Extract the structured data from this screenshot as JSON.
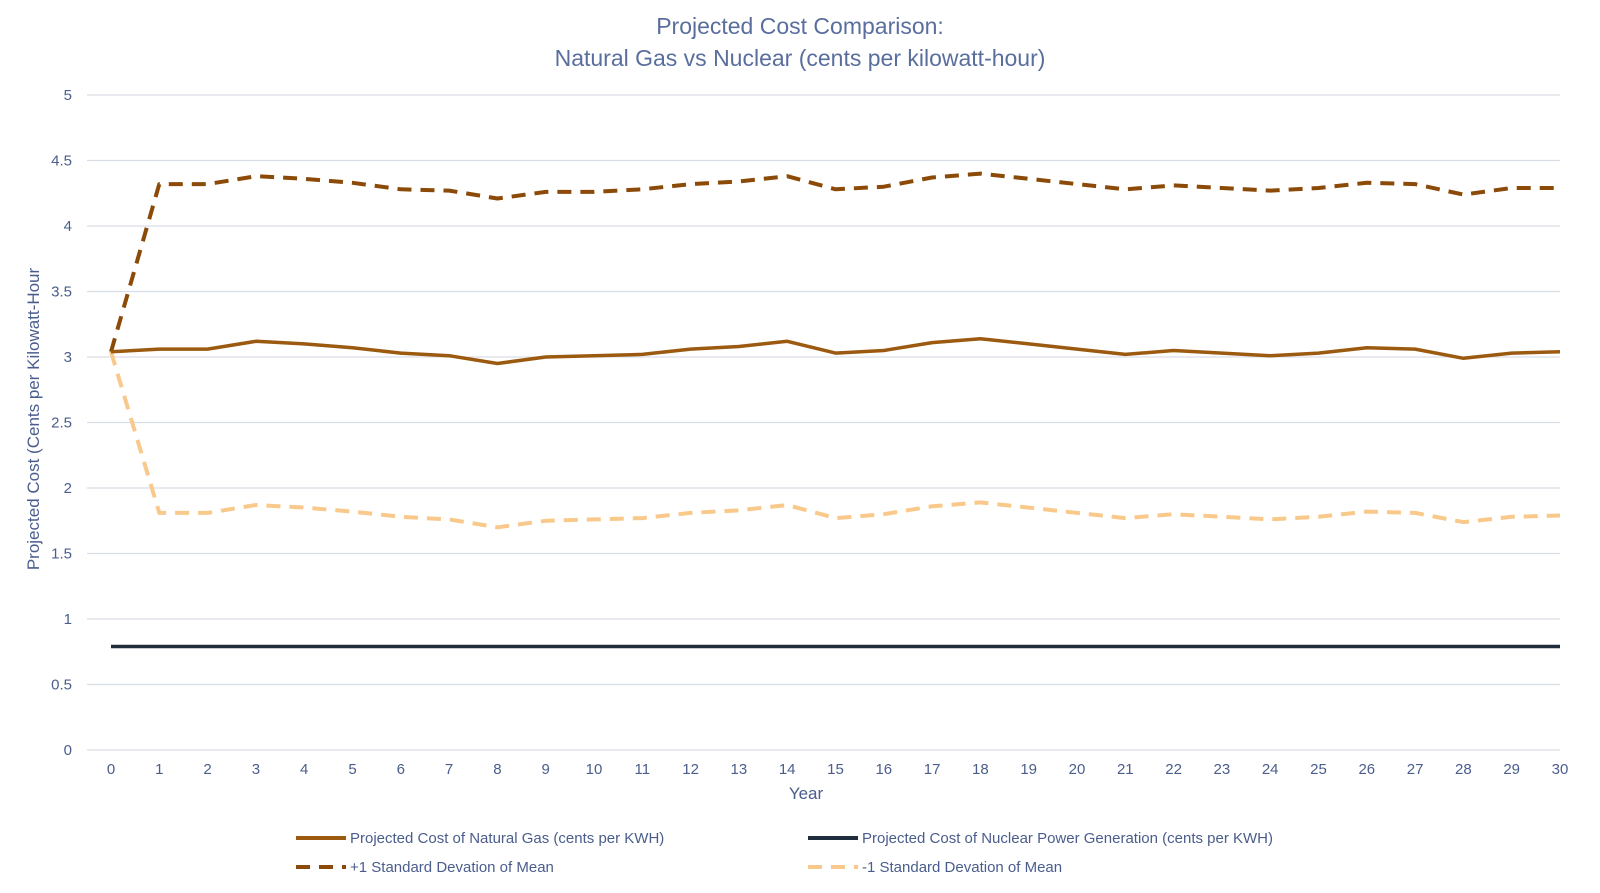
{
  "chart_data": {
    "type": "line",
    "title_line1": "Projected Cost Comparison:",
    "title_line2": "Natural Gas vs Nuclear (cents per kilowatt-hour)",
    "xlabel": "Year",
    "ylabel": "Projected Cost (Cents per Kilowatt-Hour",
    "ylim": [
      0,
      5
    ],
    "yticks": [
      "0",
      "0.5",
      "1",
      "1.5",
      "2",
      "2.5",
      "3",
      "3.5",
      "4",
      "4.5",
      "5"
    ],
    "x": [
      "0",
      "1",
      "2",
      "3",
      "4",
      "5",
      "6",
      "7",
      "8",
      "9",
      "10",
      "11",
      "12",
      "13",
      "14",
      "15",
      "16",
      "17",
      "18",
      "19",
      "20",
      "21",
      "22",
      "23",
      "24",
      "25",
      "26",
      "27",
      "28",
      "29",
      "30"
    ],
    "grid": true,
    "legend_position": "bottom",
    "series": [
      {
        "name": "Projected Cost of Natural Gas (cents per KWH)",
        "color": "#9b5a10",
        "style": "solid",
        "values": [
          3.04,
          3.06,
          3.06,
          3.12,
          3.1,
          3.07,
          3.03,
          3.01,
          2.95,
          3.0,
          3.01,
          3.02,
          3.06,
          3.08,
          3.12,
          3.03,
          3.05,
          3.11,
          3.14,
          3.1,
          3.06,
          3.02,
          3.05,
          3.03,
          3.01,
          3.03,
          3.07,
          3.06,
          2.99,
          3.03,
          3.04
        ]
      },
      {
        "name": "Projected Cost of Nuclear Power Generation (cents per KWH)",
        "color": "#1f2d3d",
        "style": "solid",
        "values": [
          0.79,
          0.79,
          0.79,
          0.79,
          0.79,
          0.79,
          0.79,
          0.79,
          0.79,
          0.79,
          0.79,
          0.79,
          0.79,
          0.79,
          0.79,
          0.79,
          0.79,
          0.79,
          0.79,
          0.79,
          0.79,
          0.79,
          0.79,
          0.79,
          0.79,
          0.79,
          0.79,
          0.79,
          0.79,
          0.79,
          0.79
        ]
      },
      {
        "name": "+1 Standard Devation of Mean",
        "color": "#8c4a08",
        "style": "dashed",
        "values": [
          3.04,
          4.32,
          4.32,
          4.38,
          4.36,
          4.33,
          4.28,
          4.27,
          4.21,
          4.26,
          4.26,
          4.28,
          4.32,
          4.34,
          4.38,
          4.28,
          4.3,
          4.37,
          4.4,
          4.36,
          4.32,
          4.28,
          4.31,
          4.29,
          4.27,
          4.29,
          4.33,
          4.32,
          4.24,
          4.29,
          4.29
        ]
      },
      {
        "name": "-1 Standard Devation of Mean",
        "color": "#f8c98a",
        "style": "dashed",
        "values": [
          3.04,
          1.81,
          1.81,
          1.87,
          1.85,
          1.82,
          1.78,
          1.76,
          1.7,
          1.75,
          1.76,
          1.77,
          1.81,
          1.83,
          1.87,
          1.77,
          1.8,
          1.86,
          1.89,
          1.85,
          1.81,
          1.77,
          1.8,
          1.78,
          1.76,
          1.78,
          1.82,
          1.81,
          1.74,
          1.78,
          1.79
        ]
      }
    ]
  },
  "colors": {
    "title": "#5a6e9e",
    "ticks": "#4a5d8c",
    "gridline": "#d9dde6"
  }
}
